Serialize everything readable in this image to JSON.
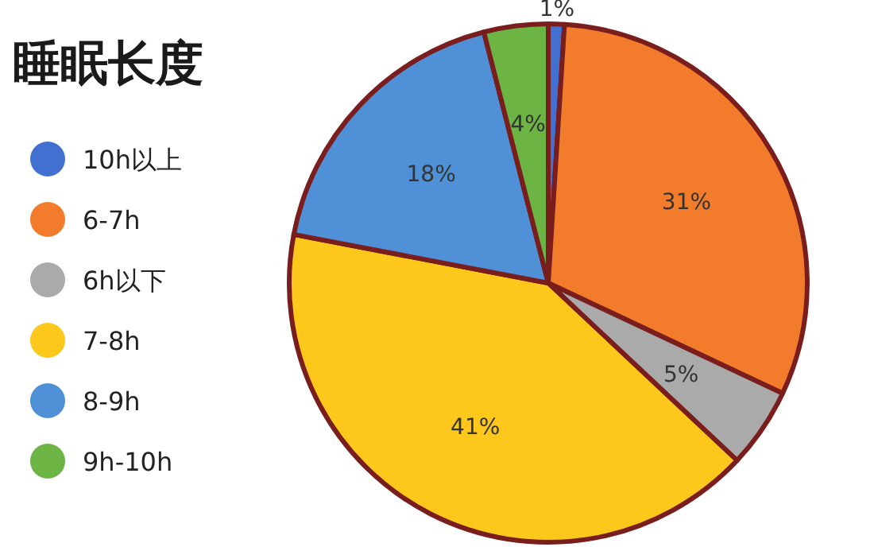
{
  "chart_data": {
    "type": "pie",
    "title": "睡眠长度",
    "categories": [
      "10h以上",
      "6-7h",
      "6h以下",
      "7-8h",
      "8-9h",
      "9h-10h"
    ],
    "values": [
      1,
      31,
      5,
      41,
      18,
      4
    ],
    "colors": [
      "#4170d0",
      "#f27c2c",
      "#aaaaaa",
      "#fdc71c",
      "#4f90d6",
      "#6cb545"
    ],
    "value_labels": [
      "1%",
      "31%",
      "5%",
      "41%",
      "18%",
      "4%"
    ],
    "legend": "left"
  }
}
